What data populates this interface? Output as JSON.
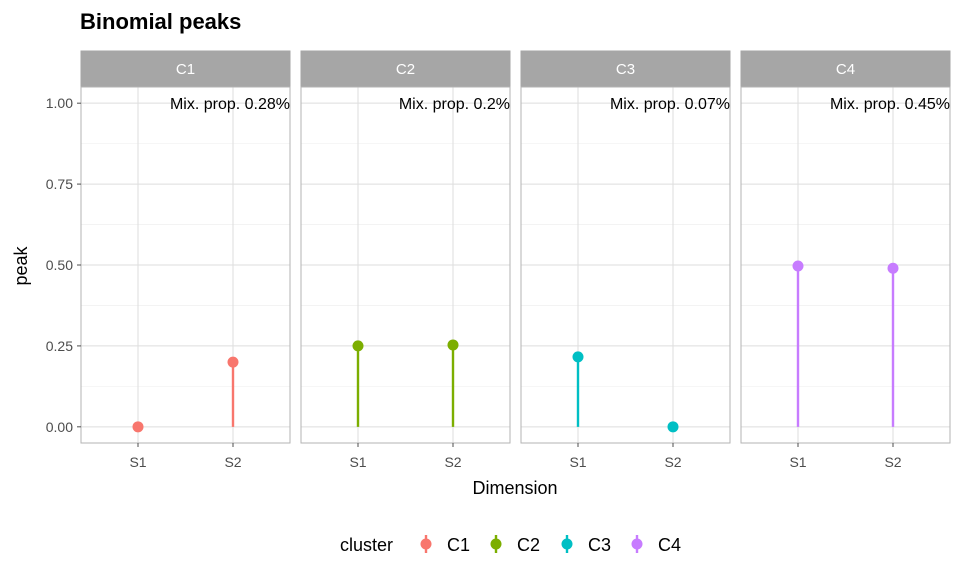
{
  "chart_data": {
    "type": "scatter",
    "title": "Binomial peaks",
    "xlabel": "Dimension",
    "ylabel": "peak",
    "ylim": [
      -0.05,
      1.05
    ],
    "yticks": [
      0.0,
      0.25,
      0.5,
      0.75,
      1.0
    ],
    "ytick_labels": [
      "0.00",
      "0.25",
      "0.50",
      "0.75",
      "1.00"
    ],
    "categories": [
      "S1",
      "S2"
    ],
    "grid": true,
    "legend_title": "cluster",
    "legend_position": "bottom",
    "panels": [
      {
        "name": "C1",
        "color": "#F8766D",
        "annotation": "Mix. prop. 0.28%",
        "values": [
          0.0,
          0.2
        ]
      },
      {
        "name": "C2",
        "color": "#7CAE00",
        "annotation": "Mix. prop. 0.2%",
        "values": [
          0.25,
          0.253
        ]
      },
      {
        "name": "C3",
        "color": "#00BFC4",
        "annotation": "Mix. prop. 0.07%",
        "values": [
          0.216,
          0.0
        ]
      },
      {
        "name": "C4",
        "color": "#C77CFF",
        "annotation": "Mix. prop. 0.45%",
        "values": [
          0.497,
          0.49
        ]
      }
    ]
  }
}
